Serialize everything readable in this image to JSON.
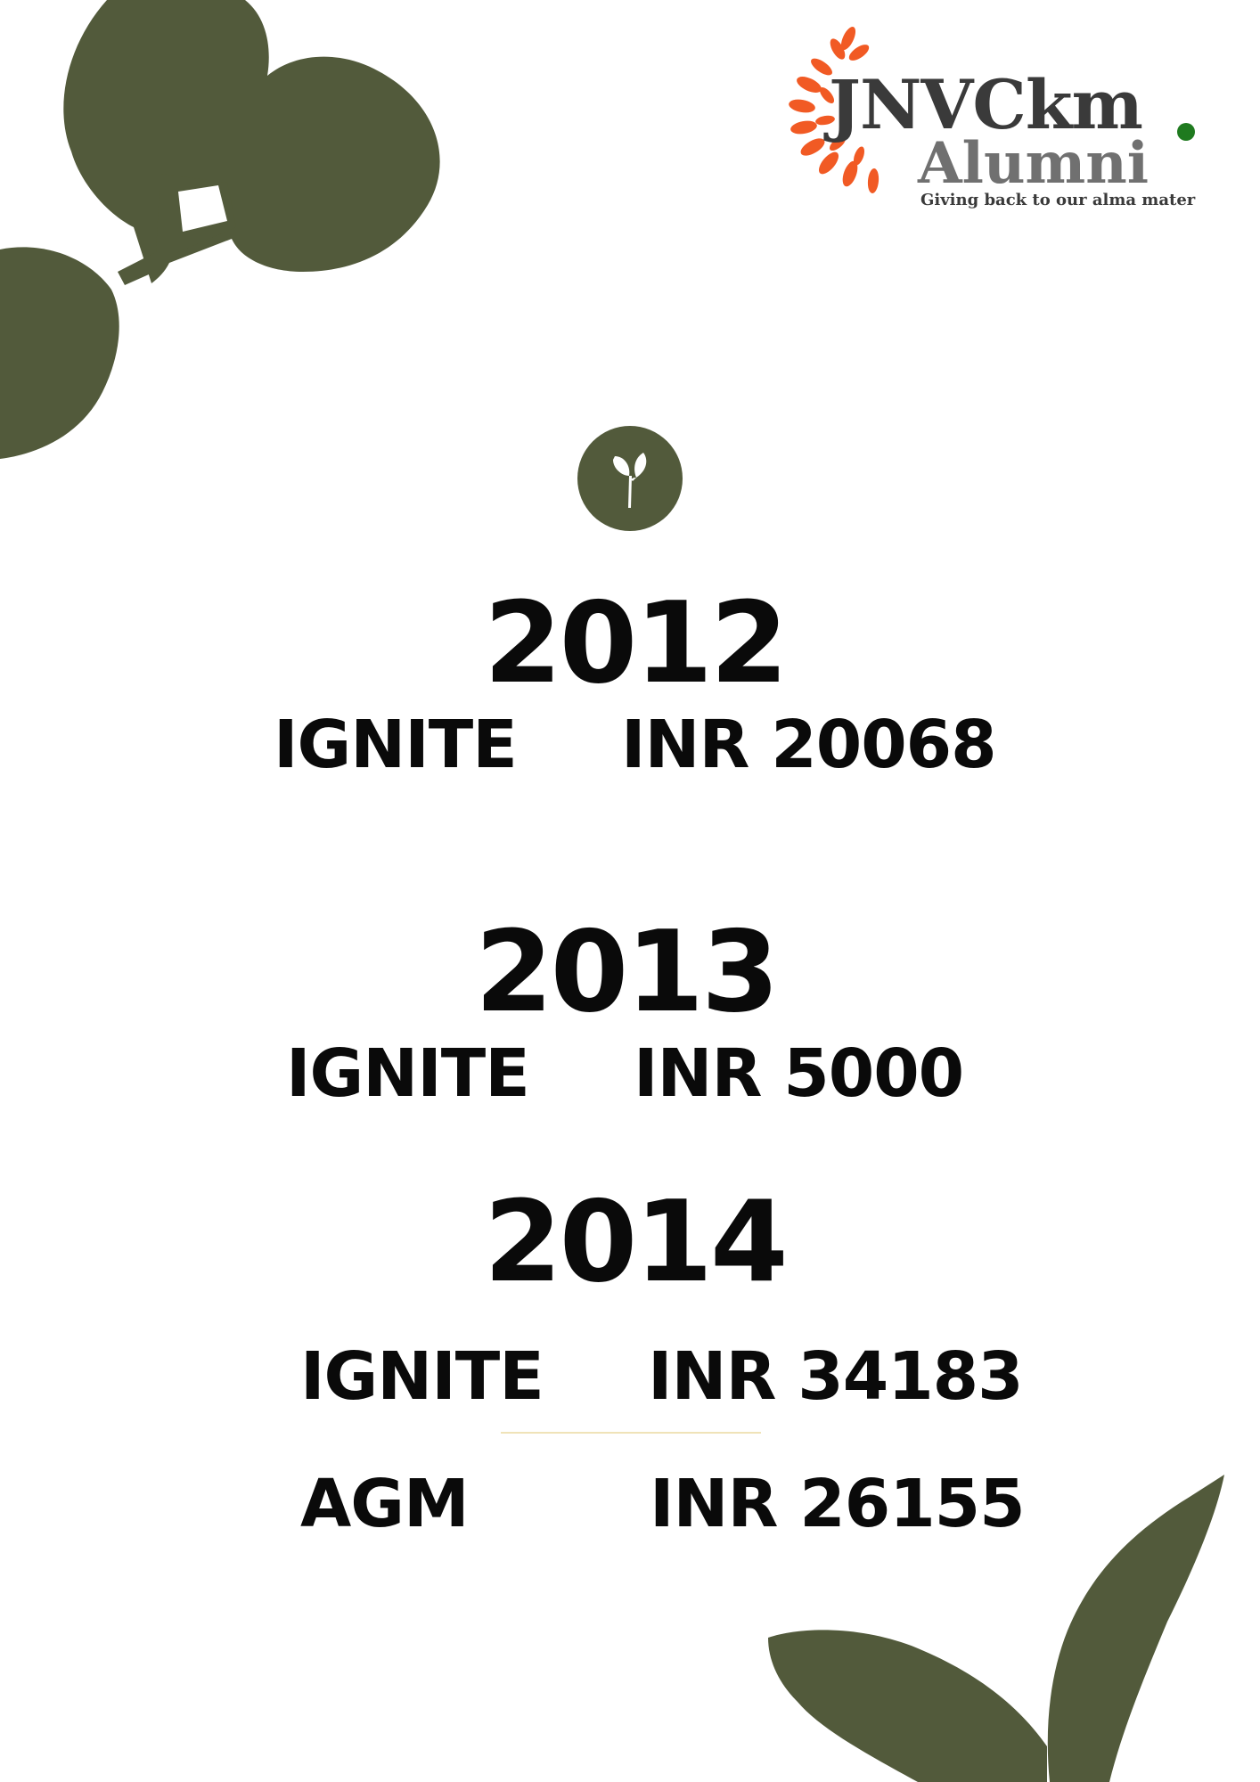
{
  "logo": {
    "name": "JNVCkm",
    "subname": "Alumni",
    "tagline": "Giving back to our alma mater",
    "colors": {
      "wreath": "#f15a24",
      "text": "#3a3a3a",
      "subtext": "#707070",
      "dot": "#1f7a1f"
    }
  },
  "decor": {
    "leaf_color": "#525a3b",
    "badge_icon": "sprout-icon"
  },
  "years": [
    {
      "year": "2012",
      "entries": [
        {
          "label": "IGNITE",
          "value": "INR 20068"
        }
      ]
    },
    {
      "year": "2013",
      "entries": [
        {
          "label": "IGNITE",
          "value": "INR 5000"
        }
      ]
    },
    {
      "year": "2014",
      "entries": [
        {
          "label": "IGNITE",
          "value": "INR 34183"
        },
        {
          "label": "AGM",
          "value": "INR 26155"
        }
      ]
    }
  ]
}
